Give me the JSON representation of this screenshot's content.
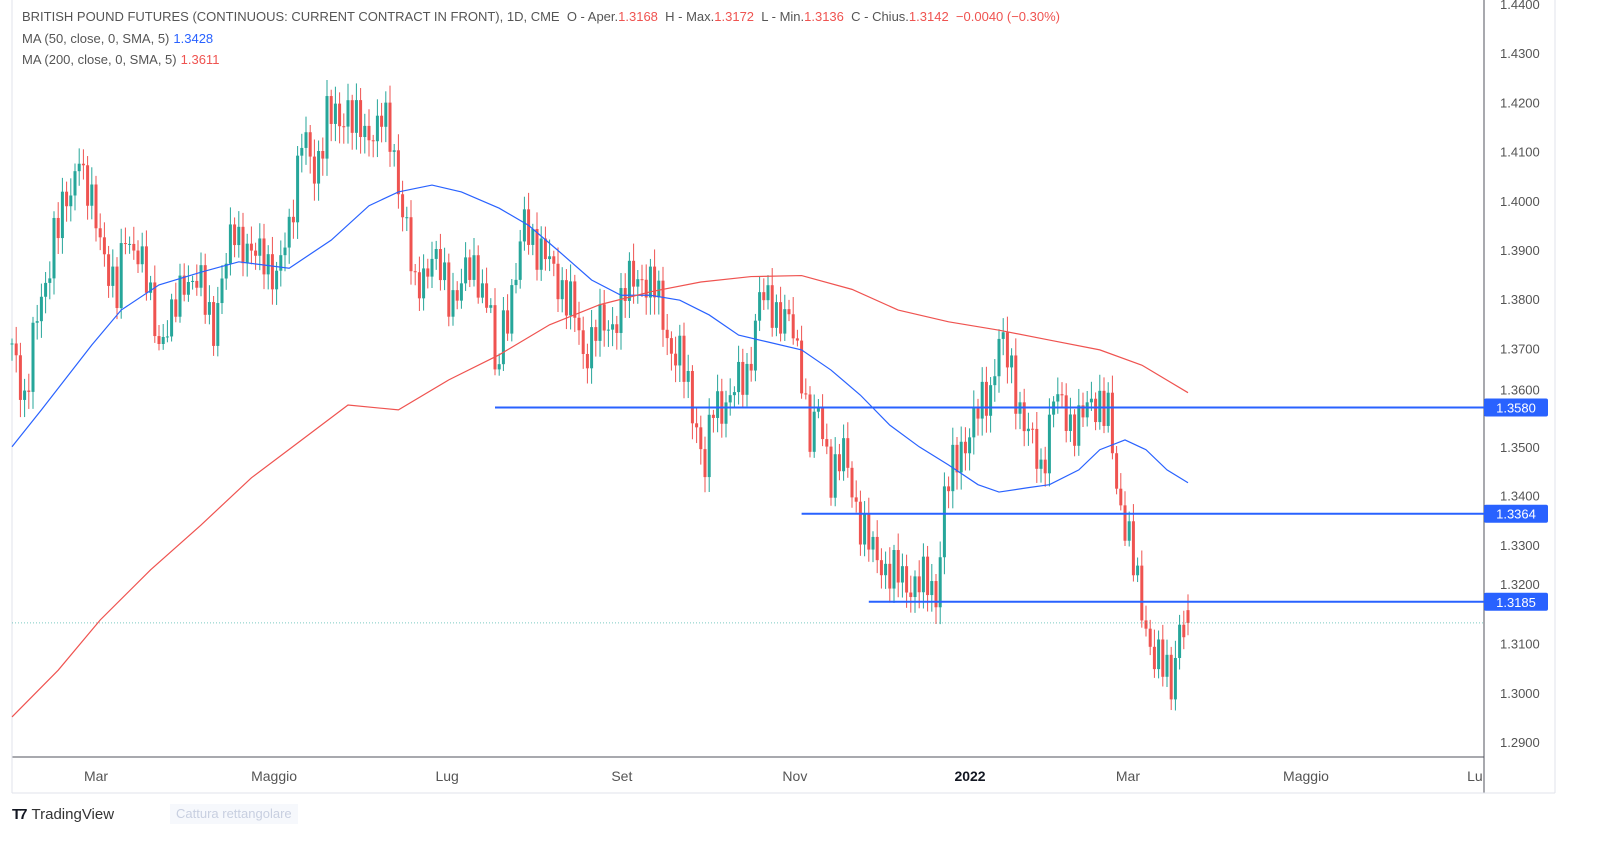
{
  "header": {
    "symbol": "BRITISH POUND FUTURES (CONTINUOUS: CURRENT CONTRACT IN FRONT), 1D, CME",
    "open_label": "O - Aper.",
    "open": "1.3168",
    "high_label": "H - Max.",
    "high": "1.3172",
    "low_label": "L - Min.",
    "low": "1.3136",
    "close_label": "C - Chius.",
    "close": "1.3142",
    "change": "−0.0040 (−0.30%)"
  },
  "indicators": [
    {
      "label": "MA (50, close, 0, SMA, 5)",
      "value": "1.3428",
      "color": "#2962ff"
    },
    {
      "label": "MA (200, close, 0, SMA, 5)",
      "value": "1.3611",
      "color": "#ef5350"
    }
  ],
  "overlay_hint": "Cattura rettangolare",
  "branding": {
    "name": "TradingView"
  },
  "chart_data": {
    "type": "candlestick",
    "title": "British Pound Futures 1D",
    "up_color": "#26a69a",
    "down_color": "#ef5350",
    "ylim": [
      1.29,
      1.44
    ],
    "y_ticks": [
      "1.4400",
      "1.4300",
      "1.4200",
      "1.4100",
      "1.4000",
      "1.3900",
      "1.3800",
      "1.3700",
      "1.3600",
      "1.3500",
      "1.3400",
      "1.3300",
      "1.3200",
      "1.3100",
      "1.3000",
      "1.2900"
    ],
    "x_ticks": [
      {
        "label": "Mar",
        "day": 20,
        "bold": false
      },
      {
        "label": "Maggio",
        "day": 62.4,
        "bold": false
      },
      {
        "label": "Lug",
        "day": 103.6,
        "bold": false
      },
      {
        "label": "Set",
        "day": 145.2,
        "bold": false
      },
      {
        "label": "Nov",
        "day": 186.4,
        "bold": false
      },
      {
        "label": "2022",
        "day": 228.1,
        "bold": true
      },
      {
        "label": "Mar",
        "day": 265.7,
        "bold": false
      },
      {
        "label": "Maggio",
        "day": 308.1,
        "bold": false
      },
      {
        "label": "Lu",
        "day": 348.3,
        "bold": false
      }
    ],
    "close_keypoints": [
      [
        0,
        1.369
      ],
      [
        3,
        1.36
      ],
      [
        5,
        1.372
      ],
      [
        8,
        1.382
      ],
      [
        10,
        1.395
      ],
      [
        14,
        1.4
      ],
      [
        16,
        1.412
      ],
      [
        17,
        1.405
      ],
      [
        20,
        1.395
      ],
      [
        22,
        1.39
      ],
      [
        25,
        1.38
      ],
      [
        27,
        1.393
      ],
      [
        30,
        1.39
      ],
      [
        35,
        1.372
      ],
      [
        38,
        1.375
      ],
      [
        41,
        1.385
      ],
      [
        45,
        1.382
      ],
      [
        48,
        1.375
      ],
      [
        53,
        1.395
      ],
      [
        57,
        1.388
      ],
      [
        60,
        1.39
      ],
      [
        63,
        1.383
      ],
      [
        66,
        1.395
      ],
      [
        69,
        1.413
      ],
      [
        72,
        1.405
      ],
      [
        75,
        1.418
      ],
      [
        78,
        1.415
      ],
      [
        80,
        1.42
      ],
      [
        84,
        1.412
      ],
      [
        88,
        1.418
      ],
      [
        91,
        1.408
      ],
      [
        94,
        1.395
      ],
      [
        96,
        1.38
      ],
      [
        100,
        1.39
      ],
      [
        102,
        1.385
      ],
      [
        104,
        1.38
      ],
      [
        108,
        1.385
      ],
      [
        111,
        1.385
      ],
      [
        114,
        1.378
      ],
      [
        115,
        1.362
      ],
      [
        117,
        1.375
      ],
      [
        120,
        1.385
      ],
      [
        122,
        1.395
      ],
      [
        126,
        1.39
      ],
      [
        129,
        1.385
      ],
      [
        133,
        1.38
      ],
      [
        136,
        1.368
      ],
      [
        139,
        1.375
      ],
      [
        142,
        1.373
      ],
      [
        146,
        1.382
      ],
      [
        150,
        1.385
      ],
      [
        153,
        1.382
      ],
      [
        157,
        1.37
      ],
      [
        159,
        1.368
      ],
      [
        163,
        1.355
      ],
      [
        165,
        1.345
      ],
      [
        167,
        1.358
      ],
      [
        171,
        1.36
      ],
      [
        175,
        1.365
      ],
      [
        178,
        1.38
      ],
      [
        182,
        1.378
      ],
      [
        185,
        1.375
      ],
      [
        188,
        1.366
      ],
      [
        190,
        1.352
      ],
      [
        192,
        1.356
      ],
      [
        195,
        1.345
      ],
      [
        198,
        1.348
      ],
      [
        202,
        1.335
      ],
      [
        205,
        1.328
      ],
      [
        209,
        1.325
      ],
      [
        213,
        1.322
      ],
      [
        216,
        1.323
      ],
      [
        220,
        1.32
      ],
      [
        222,
        1.34
      ],
      [
        226,
        1.35
      ],
      [
        229,
        1.355
      ],
      [
        233,
        1.362
      ],
      [
        235,
        1.372
      ],
      [
        238,
        1.365
      ],
      [
        241,
        1.355
      ],
      [
        245,
        1.345
      ],
      [
        248,
        1.36
      ],
      [
        252,
        1.355
      ],
      [
        255,
        1.356
      ],
      [
        259,
        1.36
      ],
      [
        261,
        1.357
      ],
      [
        263,
        1.34
      ],
      [
        266,
        1.333
      ],
      [
        269,
        1.315
      ],
      [
        271,
        1.31
      ],
      [
        273,
        1.308
      ],
      [
        276,
        1.3
      ],
      [
        278,
        1.315
      ],
      [
        280,
        1.3142
      ]
    ],
    "series": [
      {
        "name": "MA 50",
        "color": "#2962ff",
        "points": [
          [
            0,
            1.35
          ],
          [
            7,
            1.3575
          ],
          [
            19,
            1.3707
          ],
          [
            26,
            1.3778
          ],
          [
            35,
            1.3829
          ],
          [
            45,
            1.3855
          ],
          [
            54,
            1.3876
          ],
          [
            66,
            1.3863
          ],
          [
            76,
            1.392
          ],
          [
            85,
            1.399
          ],
          [
            92,
            1.4018
          ],
          [
            100,
            1.4032
          ],
          [
            107,
            1.4018
          ],
          [
            116,
            1.3985
          ],
          [
            123,
            1.395
          ],
          [
            130,
            1.3899
          ],
          [
            138,
            1.3839
          ],
          [
            145,
            1.3808
          ],
          [
            152,
            1.3808
          ],
          [
            159,
            1.3798
          ],
          [
            166,
            1.3768
          ],
          [
            173,
            1.3727
          ],
          [
            180,
            1.3713
          ],
          [
            188,
            1.3697
          ],
          [
            195,
            1.3656
          ],
          [
            202,
            1.3605
          ],
          [
            209,
            1.3544
          ],
          [
            216,
            1.35
          ],
          [
            223,
            1.3463
          ],
          [
            230,
            1.3423
          ],
          [
            235,
            1.3408
          ],
          [
            242,
            1.3417
          ],
          [
            247,
            1.3423
          ],
          [
            254,
            1.3453
          ],
          [
            259,
            1.3494
          ],
          [
            265,
            1.3514
          ],
          [
            270,
            1.3494
          ],
          [
            275,
            1.3453
          ],
          [
            280,
            1.3427
          ]
        ]
      },
      {
        "name": "MA 200",
        "color": "#ef5350",
        "points": [
          [
            0,
            1.2951
          ],
          [
            11,
            1.3046
          ],
          [
            21,
            1.3148
          ],
          [
            33,
            1.325
          ],
          [
            45,
            1.3341
          ],
          [
            57,
            1.3437
          ],
          [
            69,
            1.3514
          ],
          [
            80,
            1.3585
          ],
          [
            92,
            1.3575
          ],
          [
            104,
            1.3636
          ],
          [
            116,
            1.3687
          ],
          [
            128,
            1.3748
          ],
          [
            140,
            1.3789
          ],
          [
            152,
            1.3815
          ],
          [
            164,
            1.3835
          ],
          [
            176,
            1.3846
          ],
          [
            188,
            1.3848
          ],
          [
            200,
            1.382
          ],
          [
            211,
            1.3778
          ],
          [
            223,
            1.3754
          ],
          [
            235,
            1.3737
          ],
          [
            247,
            1.3717
          ],
          [
            259,
            1.3697
          ],
          [
            269,
            1.3666
          ],
          [
            280,
            1.361
          ]
        ]
      }
    ],
    "horizontal_levels": [
      {
        "price": 1.358,
        "label": "1.3580",
        "start_day": 115
      },
      {
        "price": 1.3364,
        "label": "1.3364",
        "start_day": 188
      },
      {
        "price": 1.3185,
        "label": "1.3185",
        "start_day": 204
      }
    ],
    "last_price": 1.3142
  }
}
